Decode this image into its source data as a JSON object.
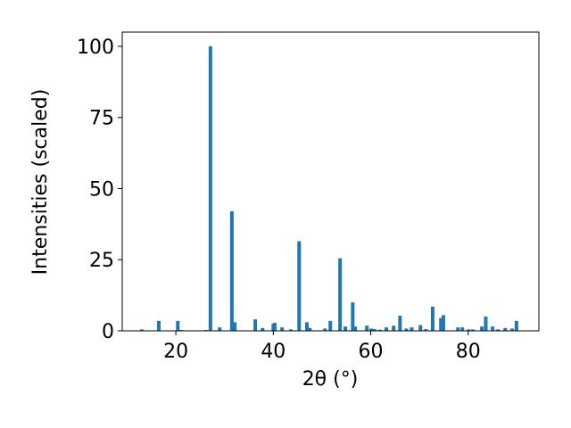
{
  "chart_data": {
    "type": "bar",
    "color": "#1f77b4",
    "xlabel": "2θ (°)",
    "ylabel": "Intensities (scaled)",
    "x": [
      13.0,
      16.5,
      20.4,
      21.1,
      26.2,
      27.1,
      29.0,
      31.5,
      32.1,
      36.3,
      37.8,
      40.0,
      40.3,
      41.8,
      43.6,
      45.3,
      46.9,
      47.5,
      50.6,
      51.7,
      53.7,
      54.8,
      56.3,
      56.8,
      59.2,
      60.1,
      60.8,
      61.9,
      63.2,
      64.7,
      66.0,
      67.3,
      68.4,
      70.2,
      71.3,
      72.7,
      74.4,
      74.9,
      77.9,
      78.8,
      80.1,
      81.0,
      82.8,
      83.6,
      85.0,
      86.1,
      87.6,
      89.0,
      89.9
    ],
    "values": [
      0.5,
      3.5,
      3.5,
      0.3,
      0.3,
      100,
      1.2,
      42,
      3,
      4,
      1,
      2.5,
      2.8,
      1.2,
      0.5,
      31.5,
      3,
      1,
      0.8,
      3.5,
      25.5,
      1.5,
      10,
      1.5,
      1.8,
      0.8,
      0.6,
      0.4,
      1.2,
      1.8,
      5.3,
      0.8,
      1.2,
      2,
      0.6,
      8.5,
      4.5,
      5.5,
      1.2,
      1.2,
      0.5,
      0.5,
      1.5,
      5,
      1.5,
      0.5,
      1,
      0.8,
      3.5
    ],
    "xlim": [
      9,
      94.5
    ],
    "ylim": [
      0,
      105
    ],
    "xticks": [
      20,
      40,
      60,
      80
    ],
    "yticks": [
      0,
      25,
      50,
      75,
      100
    ]
  }
}
